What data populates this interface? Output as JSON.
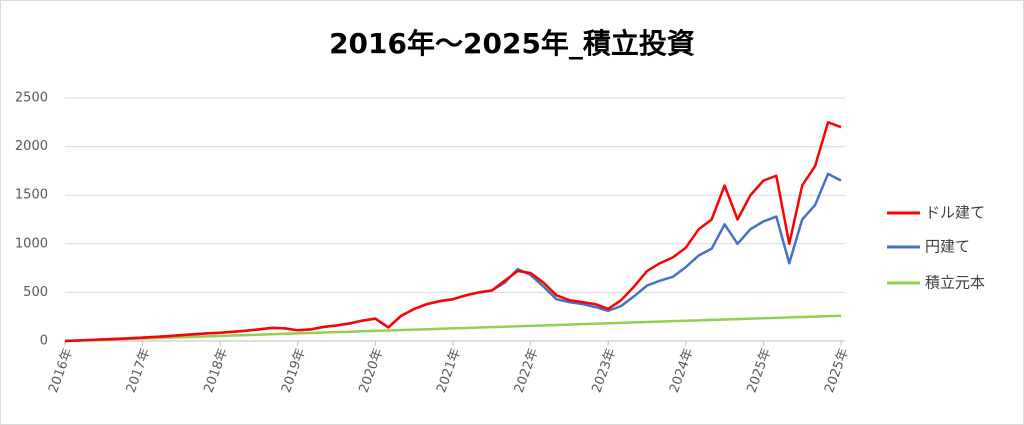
{
  "chart_data": {
    "type": "line",
    "title": "2016年～2025年_積立投資",
    "categories": [
      "2016年",
      null,
      null,
      null,
      null,
      null,
      "2017年",
      null,
      null,
      null,
      null,
      null,
      "2018年",
      null,
      null,
      null,
      null,
      null,
      "2019年",
      null,
      null,
      null,
      null,
      null,
      "2020年",
      null,
      null,
      null,
      null,
      null,
      "2021年",
      null,
      null,
      null,
      null,
      null,
      "2022年",
      null,
      null,
      null,
      null,
      null,
      "2023年",
      null,
      null,
      null,
      null,
      null,
      "2024年",
      null,
      null,
      null,
      null,
      null,
      "2025年",
      null,
      null,
      null,
      null,
      null,
      "2025年"
    ],
    "series": [
      {
        "name": "ドル建て",
        "color": "#ff0000",
        "values": [
          0,
          5,
          10,
          17,
          22,
          28,
          35,
          42,
          50,
          60,
          70,
          78,
          85,
          95,
          105,
          120,
          135,
          130,
          110,
          120,
          145,
          160,
          180,
          210,
          230,
          140,
          260,
          330,
          380,
          410,
          430,
          470,
          500,
          520,
          620,
          720,
          700,
          600,
          470,
          420,
          400,
          380,
          330,
          420,
          560,
          720,
          800,
          860,
          960,
          1150,
          1250,
          1600,
          1250,
          1500,
          1650,
          1700,
          1000,
          1600,
          1800,
          2250,
          2200
        ]
      },
      {
        "name": "円建て",
        "color": "#4472c4",
        "values": [
          0,
          5,
          10,
          17,
          22,
          28,
          35,
          42,
          50,
          60,
          70,
          78,
          85,
          95,
          105,
          120,
          135,
          130,
          110,
          120,
          145,
          160,
          180,
          210,
          230,
          140,
          260,
          330,
          380,
          410,
          430,
          470,
          500,
          520,
          600,
          740,
          680,
          560,
          430,
          400,
          380,
          350,
          310,
          360,
          460,
          570,
          620,
          660,
          760,
          880,
          950,
          1200,
          1000,
          1150,
          1230,
          1280,
          800,
          1250,
          1400,
          1720,
          1650
        ]
      },
      {
        "name": "積立元本",
        "color": "#92d050",
        "values": [
          0,
          4,
          9,
          13,
          17,
          22,
          26,
          30,
          35,
          39,
          43,
          48,
          52,
          56,
          61,
          65,
          69,
          74,
          78,
          82,
          87,
          91,
          95,
          100,
          104,
          108,
          113,
          117,
          121,
          126,
          130,
          134,
          139,
          143,
          147,
          152,
          156,
          160,
          165,
          169,
          173,
          178,
          182,
          186,
          191,
          195,
          199,
          204,
          208,
          212,
          217,
          221,
          225,
          230,
          234,
          238,
          243,
          247,
          251,
          256,
          260
        ]
      }
    ],
    "ylim": [
      0,
      2500
    ],
    "yticks": [
      0,
      500,
      1000,
      1500,
      2000,
      2500
    ],
    "grid": true,
    "legend": "right"
  }
}
